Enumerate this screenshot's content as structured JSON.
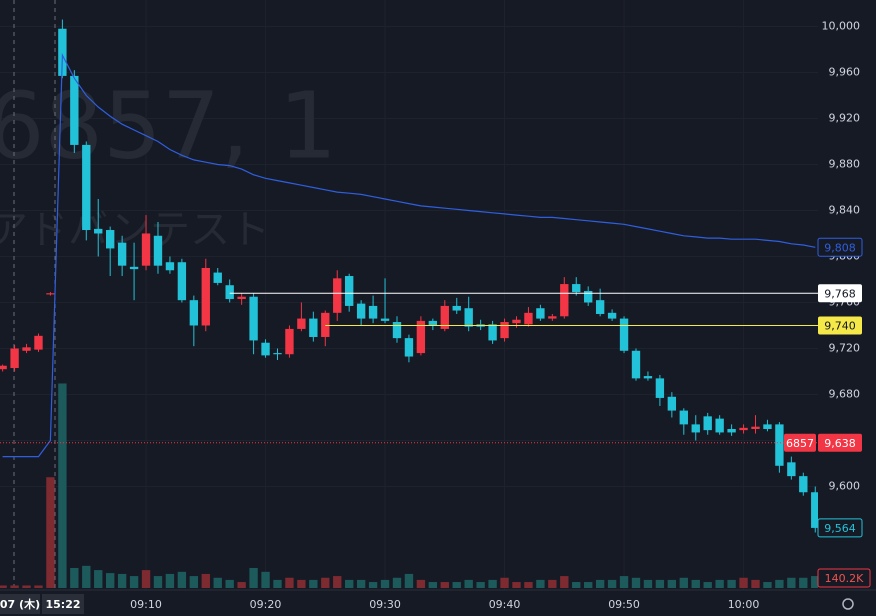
{
  "chart_data": {
    "type": "candlestick",
    "watermark": "6857, 1",
    "watermark_sub": "アドバンテスト",
    "date_label": "07 (木)",
    "crosshair_label": "15:22",
    "up_color": "#f23645",
    "down_color": "#22c3d9",
    "up_volume_color": "#7d2a31",
    "down_volume_color": "#1c5a5c",
    "x": [
      -2,
      -1,
      0,
      1,
      2,
      3,
      4,
      5,
      6,
      7,
      8,
      9,
      10,
      11,
      12,
      13,
      14,
      15,
      16,
      17,
      18,
      19,
      20,
      21,
      22,
      23,
      24,
      25,
      26,
      27,
      28,
      29,
      30,
      31,
      32,
      33,
      34,
      35,
      36,
      37,
      38,
      39,
      40,
      41,
      42,
      43,
      44,
      45,
      46,
      47,
      48,
      49,
      50,
      51,
      52,
      53,
      54,
      55,
      56,
      57,
      58,
      59,
      60,
      61,
      62,
      63,
      64,
      65,
      66
    ],
    "open": [
      9702,
      9703,
      9718,
      9719,
      9767,
      9998,
      9957,
      9897,
      9824,
      9823,
      9812,
      9791,
      9792,
      9818,
      9795,
      9795,
      9762,
      9740,
      9786,
      9775,
      9763,
      9765,
      9725,
      9716,
      9715,
      9737,
      9746,
      9730,
      9751,
      9783,
      9759,
      9757,
      9746,
      9743,
      9729,
      9716,
      9744,
      9737,
      9757,
      9755,
      9741,
      9741,
      9729,
      9742,
      9741,
      9755,
      9746,
      9748,
      9776,
      9770,
      9762,
      9751,
      9746,
      9718,
      9696,
      9694,
      9678,
      9666,
      9654,
      9661,
      9659,
      9650,
      9649,
      9650,
      9654,
      9654,
      9621,
      9609,
      9595
    ],
    "high": [
      9706,
      9723,
      9724,
      9733,
      9769,
      10006,
      9962,
      9900,
      9850,
      9826,
      9818,
      9812,
      9836,
      9830,
      9800,
      9798,
      9766,
      9798,
      9790,
      9780,
      9768,
      9768,
      9728,
      9720,
      9740,
      9760,
      9752,
      9753,
      9788,
      9785,
      9762,
      9766,
      9781,
      9748,
      9732,
      9748,
      9746,
      9762,
      9764,
      9765,
      9745,
      9744,
      9746,
      9748,
      9756,
      9758,
      9750,
      9782,
      9782,
      9774,
      9772,
      9754,
      9748,
      9720,
      9700,
      9697,
      9682,
      9668,
      9662,
      9664,
      9662,
      9654,
      9654,
      9662,
      9658,
      9656,
      9626,
      9612,
      9600
    ],
    "low": [
      9700,
      9700,
      9716,
      9717,
      9766,
      9955,
      9890,
      9814,
      9800,
      9783,
      9783,
      9762,
      9788,
      9785,
      9785,
      9760,
      9722,
      9735,
      9775,
      9760,
      9758,
      9715,
      9712,
      9710,
      9712,
      9735,
      9726,
      9722,
      9744,
      9752,
      9740,
      9742,
      9742,
      9725,
      9708,
      9714,
      9736,
      9735,
      9750,
      9735,
      9736,
      9724,
      9726,
      9738,
      9739,
      9744,
      9744,
      9746,
      9766,
      9757,
      9748,
      9744,
      9716,
      9692,
      9692,
      9670,
      9660,
      9645,
      9640,
      9645,
      9645,
      9644,
      9646,
      9646,
      9648,
      9612,
      9606,
      9592,
      9560
    ],
    "close": [
      9705,
      9720,
      9721,
      9731,
      9768,
      9957,
      9897,
      9823,
      9820,
      9807,
      9792,
      9789,
      9820,
      9792,
      9788,
      9762,
      9740,
      9790,
      9777,
      9763,
      9765,
      9727,
      9714,
      9715,
      9737,
      9746,
      9730,
      9751,
      9781,
      9757,
      9746,
      9746,
      9744,
      9729,
      9713,
      9744,
      9740,
      9757,
      9753,
      9739,
      9739,
      9727,
      9743,
      9745,
      9751,
      9746,
      9748,
      9776,
      9769,
      9760,
      9750,
      9746,
      9718,
      9694,
      9694,
      9677,
      9666,
      9654,
      9647,
      9649,
      9647,
      9647,
      9651,
      9652,
      9650,
      9618,
      9609,
      9595,
      9564
    ],
    "volume": [
      30000,
      30000,
      30000,
      30000,
      1300000,
      2400000,
      235000,
      260000,
      210000,
      175000,
      165000,
      140000,
      210000,
      140000,
      165000,
      190000,
      140000,
      165000,
      120000,
      95000,
      70000,
      235000,
      190000,
      95000,
      120000,
      95000,
      95000,
      120000,
      140000,
      95000,
      95000,
      70000,
      95000,
      120000,
      165000,
      95000,
      70000,
      70000,
      70000,
      95000,
      70000,
      95000,
      120000,
      70000,
      70000,
      95000,
      95000,
      140000,
      70000,
      70000,
      95000,
      95000,
      140000,
      120000,
      95000,
      95000,
      95000,
      120000,
      95000,
      70000,
      95000,
      95000,
      120000,
      95000,
      70000,
      95000,
      120000,
      120000,
      140200
    ],
    "volume_last_label": "140.2K",
    "volume_ylim": [
      0,
      6900000
    ],
    "close_last_label": "9,564",
    "ma": {
      "color": "#2f5fe0",
      "last_label": "9,808",
      "values": [
        9626,
        9626,
        9626,
        9626,
        9640,
        9975,
        9955,
        9940,
        9930,
        9922,
        9915,
        9910,
        9905,
        9900,
        9893,
        9888,
        9884,
        9882,
        9880,
        9879,
        9876,
        9871,
        9868,
        9866,
        9864,
        9862,
        9860,
        9858,
        9856,
        9855,
        9854,
        9852,
        9850,
        9848,
        9846,
        9844,
        9843,
        9842,
        9841,
        9840,
        9839,
        9838,
        9837,
        9836,
        9835,
        9834,
        9834,
        9833,
        9832,
        9831,
        9830,
        9829,
        9828,
        9826,
        9824,
        9822,
        9820,
        9818,
        9817,
        9816,
        9816,
        9815,
        9815,
        9815,
        9814,
        9813,
        9811,
        9810,
        9808
      ]
    },
    "levels": [
      {
        "value": 9768,
        "label": "9,768",
        "color": "#ffffff",
        "from_x": 17
      },
      {
        "value": 9740,
        "label": "9,740",
        "color": "#f5e94a",
        "from_x": 25
      }
    ],
    "last_price": {
      "value": 9638,
      "label": "9,638",
      "symbol": "6857",
      "color": "#f23645"
    },
    "xlim": [
      -2.22,
      66.23
    ],
    "xticks": [
      {
        "value": 10,
        "label": "09:10"
      },
      {
        "value": 20,
        "label": "09:20"
      },
      {
        "value": 30,
        "label": "09:30"
      },
      {
        "value": 40,
        "label": "09:40"
      },
      {
        "value": 50,
        "label": "09:50"
      },
      {
        "value": 60,
        "label": "10:00"
      }
    ],
    "ylim": [
      9510,
      10023
    ],
    "yticks": [
      {
        "value": 10000,
        "label": "10,000"
      },
      {
        "value": 9960,
        "label": "9,960"
      },
      {
        "value": 9920,
        "label": "9,920"
      },
      {
        "value": 9880,
        "label": "9,880"
      },
      {
        "value": 9840,
        "label": "9,840"
      },
      {
        "value": 9800,
        "label": "9,800"
      },
      {
        "value": 9760,
        "label": "9,760"
      },
      {
        "value": 9720,
        "label": "9,720"
      },
      {
        "value": 9680,
        "label": "9,680"
      },
      {
        "value": 9640,
        "label": "9,640"
      },
      {
        "value": 9600,
        "label": "9,600"
      }
    ],
    "grid": true
  }
}
